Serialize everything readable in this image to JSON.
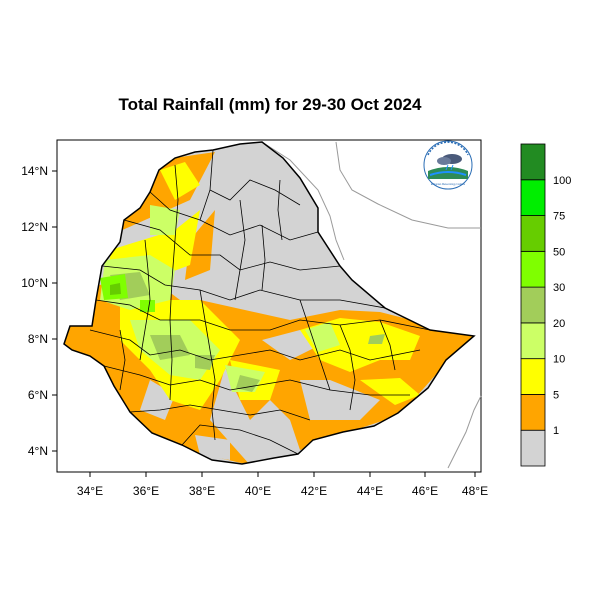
{
  "title": "Total Rainfall (mm) for 29-30 Oct 2024",
  "map": {
    "lon_range": [
      33,
      48.2
    ],
    "lat_range": [
      3.2,
      15
    ],
    "x_ticks": [
      "34°E",
      "36°E",
      "38°E",
      "40°E",
      "42°E",
      "44°E",
      "46°E",
      "48°E"
    ],
    "y_ticks": [
      "14°N",
      "12°N",
      "10°N",
      "8°N",
      "6°N",
      "4°N"
    ]
  },
  "legend": {
    "colors": [
      "#d3d3d3",
      "#ffa500",
      "#ffff00",
      "#ccff66",
      "#a2cd5a",
      "#7fff00",
      "#66cd00",
      "#00ee00",
      "#228b22"
    ],
    "labels": [
      "1",
      "5",
      "10",
      "20",
      "30",
      "50",
      "75",
      "100"
    ]
  },
  "logo": {
    "text": "Ethiopian Meteorology Institute"
  },
  "colors": {
    "no_rain": "#d3d3d3",
    "light": "#ffa500",
    "moderate": "#ffff00",
    "border": "#000000",
    "sea_coast": "#9a9a9a"
  }
}
